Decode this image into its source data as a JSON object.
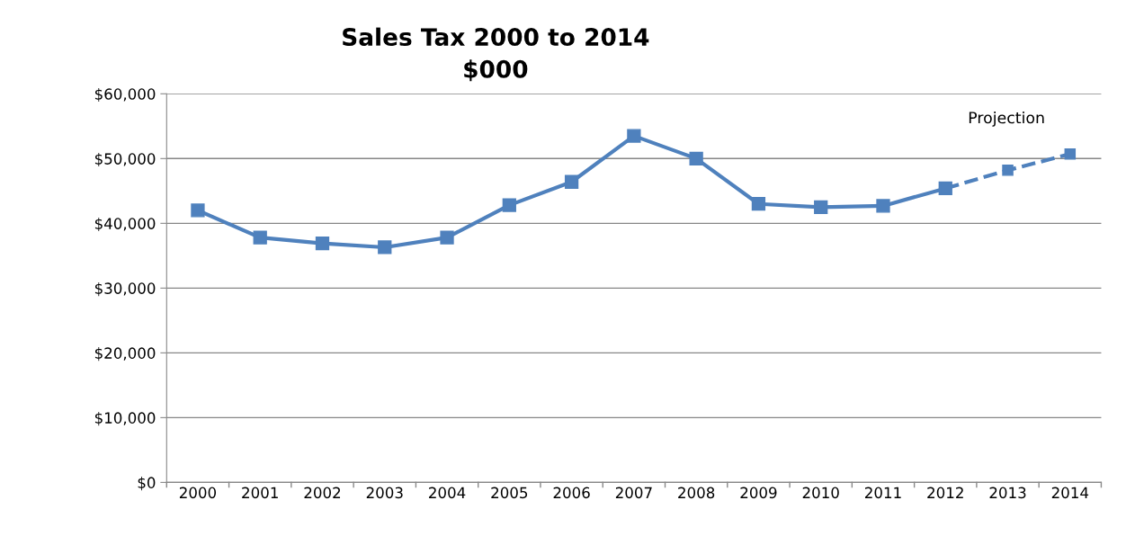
{
  "chart_data": {
    "type": "line",
    "title": "Sales Tax 2000 to 2014",
    "subtitle": "$000",
    "categories": [
      "2000",
      "2001",
      "2002",
      "2003",
      "2004",
      "2005",
      "2006",
      "2007",
      "2008",
      "2009",
      "2010",
      "2011",
      "2012",
      "2013",
      "2014"
    ],
    "series": [
      {
        "color": "#4f81bd",
        "line_style": "solid",
        "values": [
          42000,
          37800,
          36900,
          36300,
          37800,
          42800,
          46400,
          53500,
          50000,
          43000,
          42500,
          42700,
          45400,
          null,
          null
        ]
      },
      {
        "name": "Projection",
        "color": "#4f81bd",
        "line_style": "dashed",
        "values": [
          null,
          null,
          null,
          null,
          null,
          null,
          null,
          null,
          null,
          null,
          null,
          null,
          45400,
          48200,
          50700
        ]
      }
    ],
    "ylim": [
      0,
      60000
    ],
    "yticks": [
      {
        "value": 0,
        "label": "$0"
      },
      {
        "value": 10000,
        "label": "$10,000"
      },
      {
        "value": 20000,
        "label": "$20,000"
      },
      {
        "value": 30000,
        "label": "$30,000"
      },
      {
        "value": 40000,
        "label": "$40,000"
      },
      {
        "value": 50000,
        "label": "$50,000"
      },
      {
        "value": 60000,
        "label": "$60,000"
      }
    ],
    "grid": "y",
    "marker": "square",
    "legend": false
  }
}
